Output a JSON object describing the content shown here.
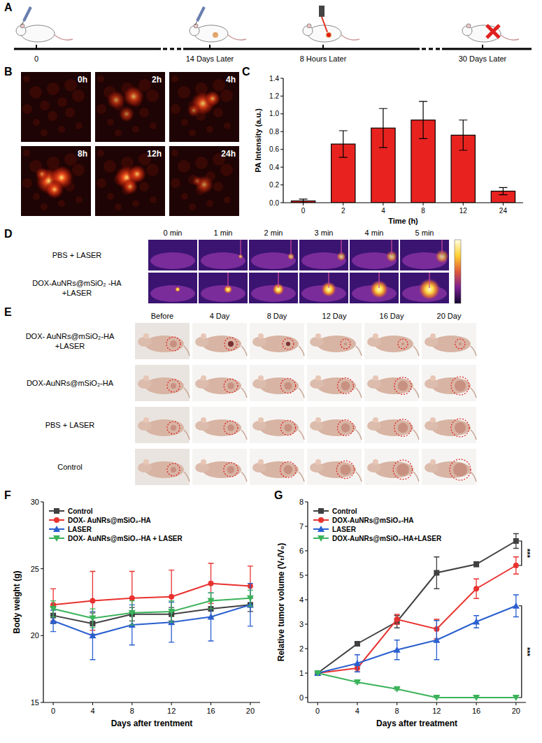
{
  "panels": {
    "labels": [
      "A",
      "B",
      "C",
      "D",
      "E",
      "F",
      "G"
    ]
  },
  "timeline": {
    "labels": [
      "0",
      "14 Days Later",
      "8 Hours Later",
      "30 Days Later"
    ]
  },
  "pa_images": {
    "labels": [
      "0h",
      "2h",
      "4h",
      "8h",
      "12h",
      "24h"
    ]
  },
  "thermal": {
    "columns": [
      "0 min",
      "1 min",
      "2 min",
      "3 min",
      "4 min",
      "5 min"
    ],
    "rows": [
      [
        "PBS + LASER"
      ],
      [
        "DOX-AuNRs@mSiO₂ -HA",
        "+LASER"
      ]
    ]
  },
  "photos": {
    "columns": [
      "Before",
      "4 Day",
      "8 Day",
      "12 Day",
      "16 Day",
      "20 Day"
    ],
    "rows": [
      [
        "DOX- AuNRs@mSiO₂-HA",
        "+LASER"
      ],
      [
        "DOX-AuNRs@mSiO₂-HA"
      ],
      [
        "PBS + LASER"
      ],
      [
        "Control"
      ]
    ]
  },
  "chart_data": [
    {
      "type": "bar",
      "xlabel": "Time (h)",
      "ylabel": "PA Intensity (a.u.)",
      "categories": [
        "0",
        "2",
        "4",
        "8",
        "12",
        "24"
      ],
      "values": [
        0.02,
        0.66,
        0.84,
        0.93,
        0.76,
        0.13
      ],
      "errors": [
        0.02,
        0.15,
        0.22,
        0.21,
        0.17,
        0.04
      ],
      "color": "#e8231f",
      "ylim": [
        0,
        1.4
      ],
      "yticks": [
        {
          "value": 0,
          "label": "0.0"
        },
        0.2,
        0.4,
        0.6,
        0.8,
        {
          "value": 1,
          "label": "1.0"
        },
        1.2,
        1.4
      ],
      "grid": false
    },
    {
      "type": "line",
      "xlabel": "Days after trentment",
      "ylabel": "Body weight (g)",
      "x": [
        0,
        4,
        8,
        12,
        16,
        20
      ],
      "xlim": [
        -1,
        21
      ],
      "xticks": [
        0,
        4,
        8,
        12,
        16,
        20
      ],
      "ylim": [
        15,
        30
      ],
      "yticks": [
        15,
        20,
        25,
        30
      ],
      "grid": false,
      "legend": "upper left",
      "series": [
        {
          "name": "Control",
          "color": "#404040",
          "marker": "square",
          "values": [
            21.5,
            20.9,
            21.6,
            21.6,
            22.0,
            22.3
          ],
          "errors": [
            0.6,
            0.8,
            0.5,
            0.5,
            0.6,
            0.5
          ]
        },
        {
          "name": "DOX- AuNRs@mSiO₂-HA",
          "color": "#e8322f",
          "marker": "circle",
          "values": [
            22.3,
            22.6,
            22.8,
            22.9,
            23.9,
            23.7
          ],
          "errors": [
            1.2,
            2.2,
            2.0,
            2.0,
            1.5,
            1.5
          ]
        },
        {
          "name": "LASER",
          "color": "#2a5fcf",
          "marker": "triangle",
          "values": [
            21.1,
            20.0,
            20.8,
            21.0,
            21.4,
            22.3
          ],
          "errors": [
            0.8,
            1.8,
            1.5,
            1.5,
            1.8,
            1.6
          ]
        },
        {
          "name": "DOX- AuNRs@mSiO₂-HA + LASER",
          "color": "#3bb35a",
          "marker": "triangle-down",
          "values": [
            22.0,
            21.3,
            21.7,
            21.8,
            22.6,
            22.8
          ],
          "errors": [
            0.6,
            0.7,
            0.9,
            0.8,
            0.6,
            0.6
          ]
        }
      ]
    },
    {
      "type": "line",
      "xlabel": "Days after treatment",
      "ylabel": "Relative tumor volume (Vₜ/V₀)",
      "x": [
        0,
        4,
        8,
        12,
        16,
        20
      ],
      "xlim": [
        -1,
        21
      ],
      "xticks": [
        0,
        4,
        8,
        12,
        16,
        20
      ],
      "ylim": [
        -0.2,
        8
      ],
      "yticks": [
        0,
        1,
        2,
        3,
        4,
        5,
        6,
        7,
        8
      ],
      "grid": false,
      "legend": "upper left",
      "series": [
        {
          "name": "Control",
          "color": "#404040",
          "marker": "square",
          "values": [
            1,
            2.2,
            3.1,
            5.1,
            5.45,
            6.4
          ],
          "errors": [
            0,
            0.08,
            0.25,
            0.65,
            0.1,
            0.3
          ]
        },
        {
          "name": "DOX-AuNRs@mSiO₂-HA",
          "color": "#e8322f",
          "marker": "circle",
          "values": [
            1,
            1.2,
            3.2,
            2.8,
            4.45,
            5.4
          ],
          "errors": [
            0,
            0.15,
            0.2,
            0.4,
            0.4,
            0.35
          ]
        },
        {
          "name": "LASER",
          "color": "#2a5fcf",
          "marker": "triangle",
          "values": [
            1,
            1.4,
            1.95,
            2.35,
            3.1,
            3.75
          ],
          "errors": [
            0,
            0.35,
            0.4,
            0.8,
            0.25,
            0.45
          ]
        },
        {
          "name": "DOX-AuNRs@mSiO₂-HA+LASER",
          "color": "#3bb35a",
          "marker": "triangle-down",
          "values": [
            1,
            0.63,
            0.35,
            0,
            0,
            0
          ],
          "errors": [
            0,
            0.05,
            0.04,
            0,
            0,
            0
          ]
        }
      ],
      "annotations": [
        {
          "text": "***",
          "x": 20,
          "y1": 6.4,
          "y2": 5.4
        },
        {
          "text": "***",
          "x": 20,
          "y1": 3.75,
          "y2": 0
        }
      ]
    }
  ]
}
